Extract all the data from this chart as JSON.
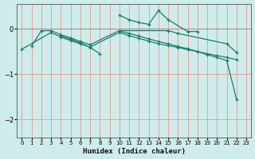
{
  "xlabel": "Humidex (Indice chaleur)",
  "bg_color": "#ceecea",
  "grid_color": "#e8a0a0",
  "line_color": "#1a7a6e",
  "ylim": [
    -2.4,
    0.55
  ],
  "xlim": [
    -0.5,
    23.5
  ],
  "yticks": [
    0,
    -1,
    -2
  ],
  "xticks": [
    0,
    1,
    2,
    3,
    4,
    5,
    6,
    7,
    8,
    9,
    10,
    11,
    12,
    13,
    14,
    15,
    16,
    17,
    18,
    19,
    20,
    21,
    22,
    23
  ],
  "series": [
    {
      "x": [
        1,
        2,
        3,
        4,
        5,
        6,
        7,
        10,
        15,
        16,
        21,
        22
      ],
      "y": [
        -0.38,
        -0.04,
        -0.04,
        -0.13,
        -0.2,
        -0.28,
        -0.35,
        -0.04,
        -0.04,
        -0.1,
        -0.33,
        -0.52
      ]
    },
    {
      "x": [
        4,
        5,
        6,
        7,
        8
      ],
      "y": [
        -0.16,
        -0.23,
        -0.31,
        -0.41,
        -0.55
      ]
    },
    {
      "x": [
        0,
        3,
        4,
        5,
        6,
        7,
        10,
        11,
        12,
        13,
        14,
        15,
        16,
        17,
        18,
        19,
        20,
        21,
        22
      ],
      "y": [
        -0.45,
        -0.08,
        -0.18,
        -0.26,
        -0.33,
        -0.4,
        -0.08,
        -0.15,
        -0.21,
        -0.27,
        -0.33,
        -0.37,
        -0.41,
        -0.46,
        -0.5,
        -0.55,
        -0.59,
        -0.63,
        -0.68
      ]
    },
    {
      "x": [
        10,
        11,
        12,
        13,
        14,
        15,
        17,
        18
      ],
      "y": [
        0.3,
        0.2,
        0.14,
        0.1,
        0.4,
        0.2,
        -0.06,
        -0.06
      ]
    },
    {
      "x": [
        10,
        11,
        12,
        13,
        14,
        15,
        16,
        17,
        18,
        19,
        20,
        21,
        22
      ],
      "y": [
        -0.05,
        -0.1,
        -0.16,
        -0.22,
        -0.28,
        -0.33,
        -0.39,
        -0.44,
        -0.5,
        -0.57,
        -0.63,
        -0.7,
        -1.55
      ]
    }
  ]
}
